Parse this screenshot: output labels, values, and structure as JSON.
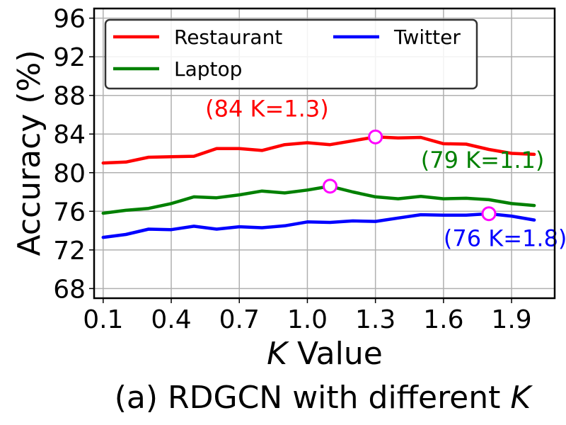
{
  "chart_data": {
    "type": "line",
    "caption": "(a) RDGCN with different K",
    "caption_prefix": "(a) RDGCN with different ",
    "caption_var": "K",
    "xlabel": "K Value",
    "xlabel_var": "K",
    "xlabel_rest": " Value",
    "ylabel": "Accuracy (%)",
    "xlim": [
      0.06,
      2.09
    ],
    "ylim": [
      67,
      97
    ],
    "x_ticks": [
      "0.1",
      "0.4",
      "0.7",
      "1.0",
      "1.3",
      "1.6",
      "1.9"
    ],
    "x_tick_values": [
      0.1,
      0.4,
      0.7,
      1.0,
      1.3,
      1.6,
      1.9
    ],
    "y_ticks": [
      "68",
      "72",
      "76",
      "80",
      "84",
      "88",
      "92",
      "96"
    ],
    "y_tick_values": [
      68,
      72,
      76,
      80,
      84,
      88,
      92,
      96
    ],
    "grid": true,
    "legend_position": "top-left",
    "x": [
      0.1,
      0.2,
      0.3,
      0.4,
      0.5,
      0.6,
      0.7,
      0.8,
      0.9,
      1.0,
      1.1,
      1.2,
      1.3,
      1.4,
      1.5,
      1.6,
      1.7,
      1.8,
      1.9,
      2.0
    ],
    "series": [
      {
        "name": "Restaurant",
        "color": "#ff0000",
        "values": [
          81.0,
          81.1,
          81.6,
          81.65,
          81.7,
          82.5,
          82.5,
          82.3,
          82.9,
          83.1,
          82.9,
          83.3,
          83.7,
          83.6,
          83.65,
          83.0,
          82.95,
          82.4,
          82.0,
          81.9
        ]
      },
      {
        "name": "Laptop",
        "color": "#008000",
        "values": [
          75.8,
          76.1,
          76.3,
          76.8,
          77.5,
          77.4,
          77.7,
          78.1,
          77.9,
          78.2,
          78.6,
          78.0,
          77.5,
          77.3,
          77.55,
          77.3,
          77.35,
          77.2,
          76.8,
          76.6
        ]
      },
      {
        "name": "Twitter",
        "color": "#0000ff",
        "values": [
          73.3,
          73.6,
          74.15,
          74.1,
          74.45,
          74.15,
          74.4,
          74.3,
          74.5,
          74.9,
          74.85,
          75.0,
          74.95,
          75.3,
          75.65,
          75.6,
          75.6,
          75.75,
          75.5,
          75.1
        ]
      }
    ],
    "highlights": [
      {
        "x": 1.3,
        "y": 83.7,
        "label": "(84 K=1.3)",
        "color": "#ff0000",
        "label_x": 0.55,
        "label_y": 85.8
      },
      {
        "x": 1.1,
        "y": 78.6,
        "label": "(79 K=1.1)",
        "color": "#008000",
        "label_x": 1.5,
        "label_y": 80.5
      },
      {
        "x": 1.8,
        "y": 75.75,
        "label": "(76 K=1.8)",
        "color": "#0000ff",
        "label_x": 1.6,
        "label_y": 72.4
      }
    ],
    "marker_color": "#ff00ff"
  }
}
